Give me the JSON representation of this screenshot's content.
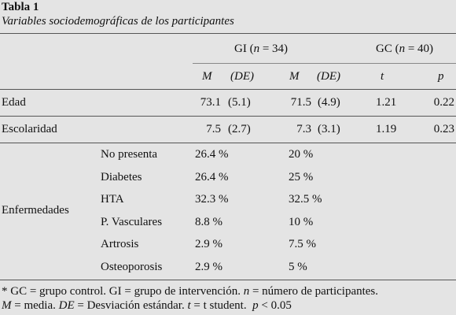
{
  "header": {
    "title": "Tabla 1",
    "subtitle": "Variables sociodemográficas de los participantes"
  },
  "table": {
    "group_headers": [
      [
        {
          "text": "GI (",
          "italic": false
        },
        {
          "text": "n",
          "italic": true
        },
        {
          "text": " = 34)",
          "italic": false
        }
      ],
      [
        {
          "text": "GC (",
          "italic": false
        },
        {
          "text": "n",
          "italic": true
        },
        {
          "text": " = 40)",
          "italic": false
        }
      ]
    ],
    "column_headers": [
      "M",
      "(DE)",
      "M",
      "(DE)",
      "t",
      "p"
    ],
    "rows": [
      {
        "label": "Edad",
        "cells": [
          "73.1",
          "(5.1)",
          "71.5",
          "(4.9)",
          "1.21",
          "0.22"
        ]
      },
      {
        "label": "Escolaridad",
        "cells": [
          "7.5",
          "(2.7)",
          "7.3",
          "(3.1)",
          "1.19",
          "0.23"
        ]
      }
    ],
    "group": {
      "label": "Enfermedades",
      "rows": [
        {
          "label": "No presenta",
          "cells": [
            "26.4 %",
            "20 %"
          ]
        },
        {
          "label": "Diabetes",
          "cells": [
            "26.4 %",
            "25 %"
          ]
        },
        {
          "label": "HTA",
          "cells": [
            "32.3 %",
            "32.5 %"
          ]
        },
        {
          "label": "P. Vasculares",
          "cells": [
            "8.8 %",
            "10 %"
          ]
        },
        {
          "label": "Artrosis",
          "cells": [
            "2.9 %",
            "7.5 %"
          ]
        },
        {
          "label": "Osteoporosis",
          "cells": [
            "2.9 %",
            "5 %"
          ]
        }
      ]
    }
  },
  "footnote": {
    "lines": [
      [
        {
          "text": "* GC = grupo control. GI = grupo de intervención. ",
          "italic": false
        },
        {
          "text": "n",
          "italic": true
        },
        {
          "text": " = número de participantes.",
          "italic": false
        }
      ],
      [
        {
          "text": "M",
          "italic": true
        },
        {
          "text": " = media. ",
          "italic": false
        },
        {
          "text": "DE",
          "italic": true
        },
        {
          "text": " = Desviación estándar. ",
          "italic": false
        },
        {
          "text": "t",
          "italic": true
        },
        {
          "text": " = t student.  ",
          "italic": false
        },
        {
          "text": "p",
          "italic": true
        },
        {
          "text": " < 0.05",
          "italic": false
        }
      ]
    ]
  }
}
